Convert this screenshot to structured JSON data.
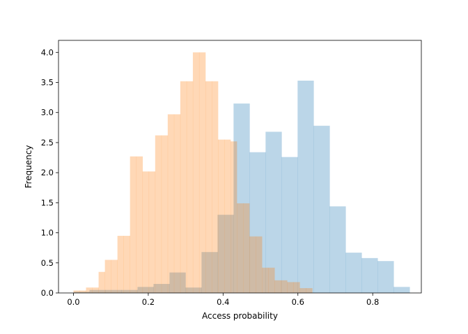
{
  "chart_data": {
    "type": "bar",
    "title": "",
    "xlabel": "Access probability",
    "ylabel": "Frequency",
    "xlim": [
      -0.04,
      0.93
    ],
    "ylim": [
      0,
      4.2
    ],
    "x_ticks": [
      0.0,
      0.2,
      0.4,
      0.6,
      0.8
    ],
    "x_tick_labels": [
      "0.0",
      "0.2",
      "0.4",
      "0.6",
      "0.8"
    ],
    "y_ticks": [
      0.0,
      0.5,
      1.0,
      1.5,
      2.0,
      2.5,
      3.0,
      3.5,
      4.0
    ],
    "y_tick_labels": [
      "0.0",
      "0.5",
      "1.0",
      "1.5",
      "2.0",
      "2.5",
      "3.0",
      "3.5",
      "4.0"
    ],
    "grid": false,
    "legend": "none",
    "series": [
      {
        "color": "#1f77b4",
        "opacity": 0.3,
        "bin_edges": [
          0.0,
          0.0428,
          0.0856,
          0.1284,
          0.1712,
          0.214,
          0.2568,
          0.2996,
          0.3424,
          0.3852,
          0.428,
          0.4708,
          0.5136,
          0.5564,
          0.5992,
          0.642,
          0.6848,
          0.7276,
          0.7704,
          0.8132,
          0.856,
          0.8988
        ],
        "values": [
          0.02,
          0.05,
          0.05,
          0.05,
          0.1,
          0.15,
          0.34,
          0.09,
          0.68,
          1.3,
          3.15,
          2.34,
          2.68,
          2.26,
          3.53,
          2.78,
          1.44,
          0.67,
          0.58,
          0.53,
          0.1
        ]
      },
      {
        "color": "#ff7f0e",
        "opacity": 0.3,
        "bin_edges": [
          0.0,
          0.0168,
          0.0336,
          0.0504,
          0.0672,
          0.084,
          0.1008,
          0.1176,
          0.1344,
          0.1512,
          0.168,
          0.1848,
          0.2016,
          0.2184,
          0.2352,
          0.252,
          0.2688,
          0.2856,
          0.3024,
          0.3192,
          0.336,
          0.3528,
          0.3696,
          0.3864,
          0.4032,
          0.42,
          0.4368,
          0.4536,
          0.4704,
          0.4872,
          0.504,
          0.5208,
          0.5376,
          0.5544,
          0.5712,
          0.588,
          0.6048,
          0.6216,
          0.6384,
          0.6552
        ],
        "values": [
          0.04,
          0.04,
          0.09,
          0.09,
          0.35,
          0.55,
          0.55,
          0.95,
          0.95,
          2.27,
          2.27,
          2.02,
          2.02,
          2.62,
          2.62,
          2.97,
          2.97,
          3.52,
          3.52,
          4.0,
          4.0,
          3.52,
          3.52,
          2.55,
          2.55,
          2.52,
          1.49,
          1.49,
          0.94,
          0.94,
          0.42,
          0.42,
          0.21,
          0.21,
          0.18,
          0.18,
          0.08,
          0.08,
          0.0
        ]
      }
    ]
  }
}
